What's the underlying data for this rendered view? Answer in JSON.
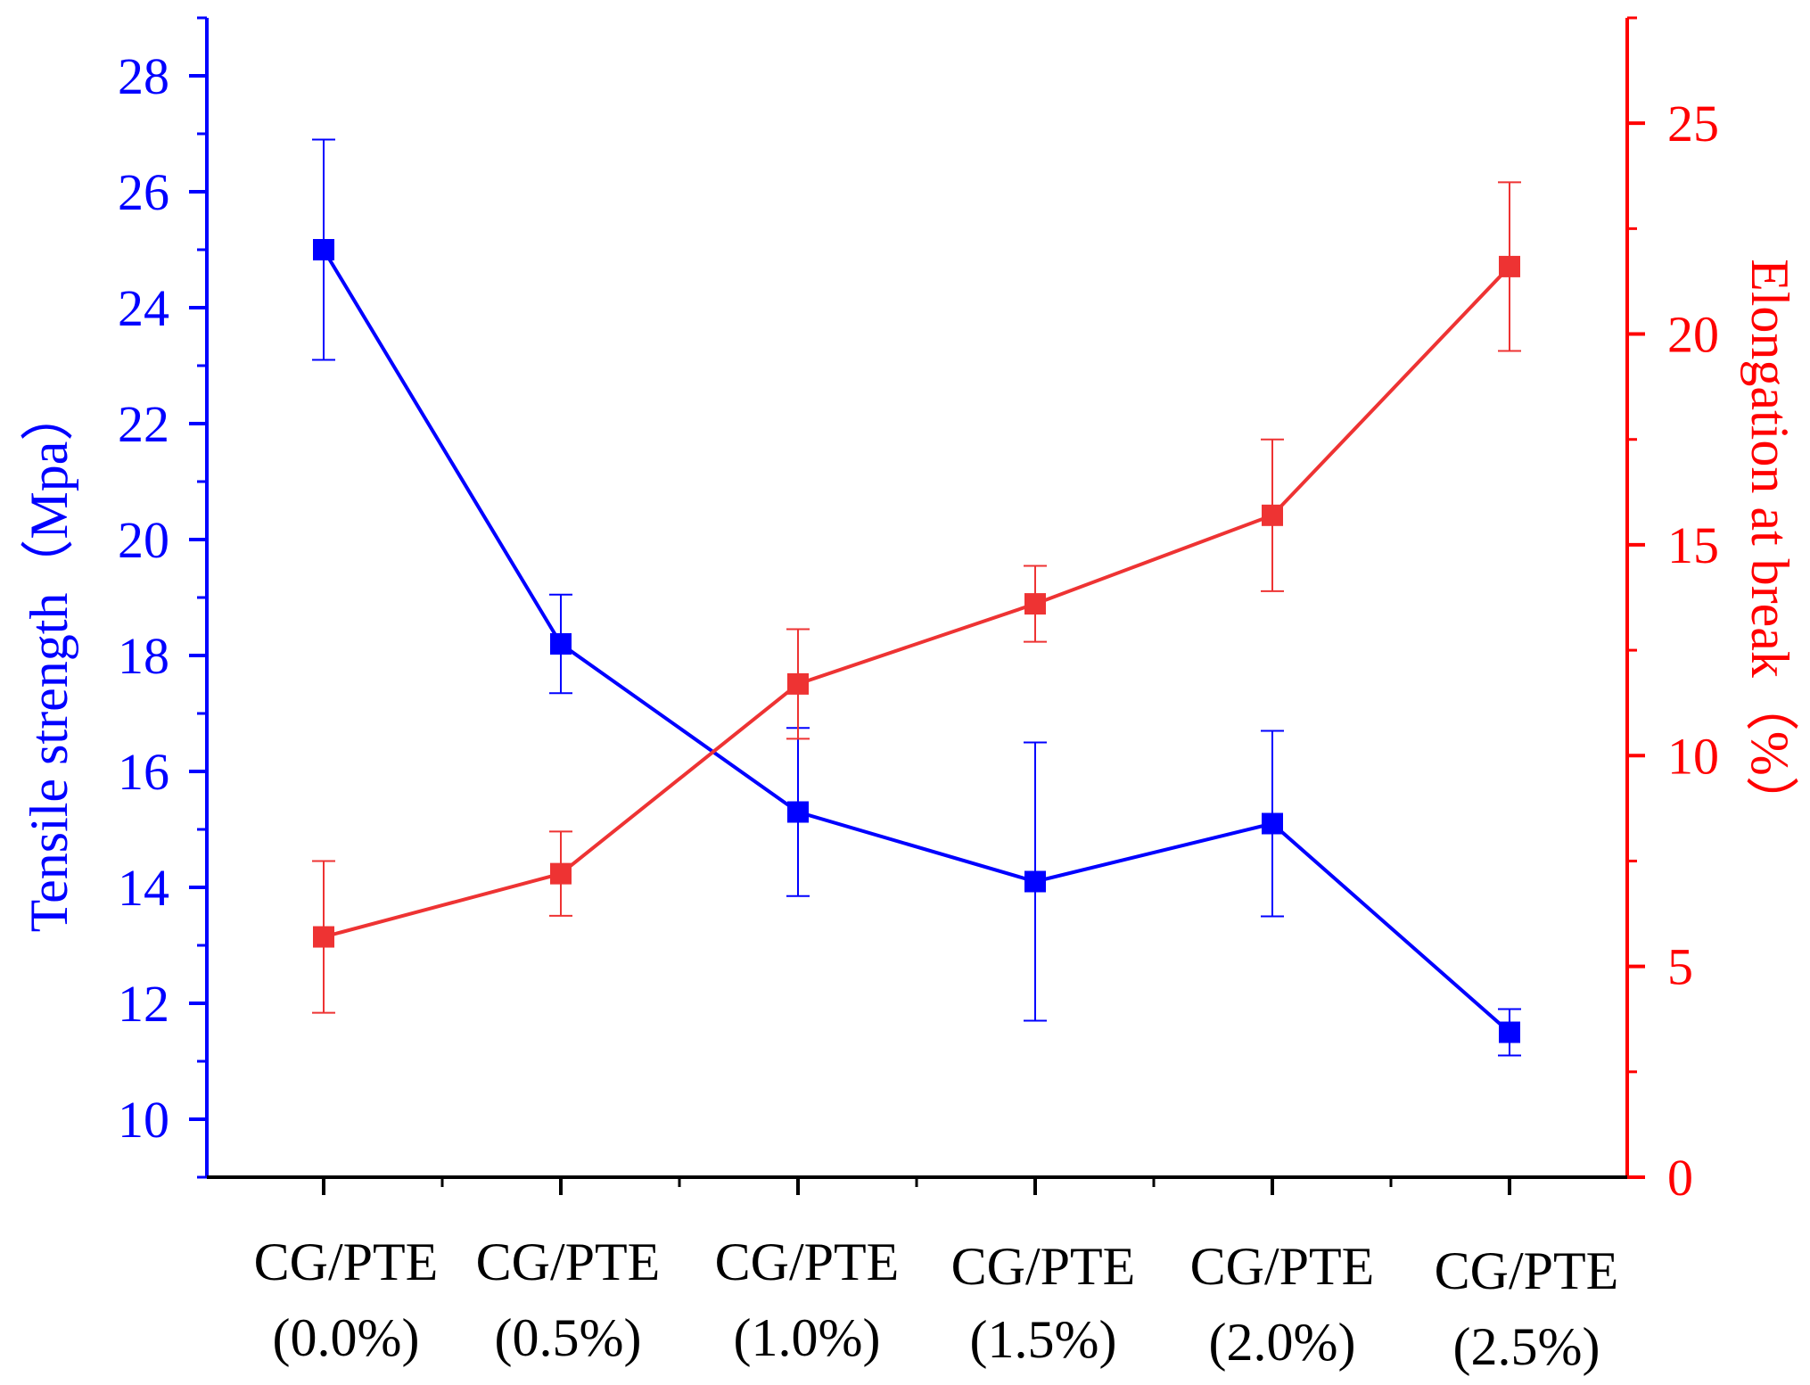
{
  "chart_data": {
    "type": "line",
    "categories": [
      [
        "CG/PTE",
        "(0.0%)"
      ],
      [
        "CG/PTE",
        "(0.5%)"
      ],
      [
        "CG/PTE",
        "(1.0%)"
      ],
      [
        "CG/PTE",
        "(1.5%)"
      ],
      [
        "CG/PTE",
        "(2.0%)"
      ],
      [
        "CG/PTE",
        "(2.5%)"
      ]
    ],
    "y_left": {
      "label": "Tensile strength（Mpa）",
      "range": [
        9,
        29
      ],
      "ticks": [
        10,
        12,
        14,
        16,
        18,
        20,
        22,
        24,
        26,
        28
      ],
      "color": "#0000FF"
    },
    "y_right": {
      "label": "Elongation at break（%）",
      "range": [
        0,
        27.5
      ],
      "ticks": [
        0,
        5,
        10,
        15,
        20,
        25
      ],
      "color": "#FF0000"
    },
    "series": [
      {
        "axis": "left",
        "color": "#0000FF",
        "values": [
          25.0,
          18.2,
          15.3,
          14.1,
          15.1,
          11.5
        ],
        "errors": [
          1.9,
          0.85,
          1.45,
          2.4,
          1.6,
          0.4
        ]
      },
      {
        "axis": "right",
        "color": "#EE3333",
        "values": [
          5.7,
          7.2,
          11.7,
          13.6,
          15.7,
          21.6
        ],
        "errors": [
          1.8,
          1.0,
          1.3,
          0.9,
          1.8,
          2.0
        ]
      }
    ],
    "grid": false,
    "legend": "none"
  }
}
